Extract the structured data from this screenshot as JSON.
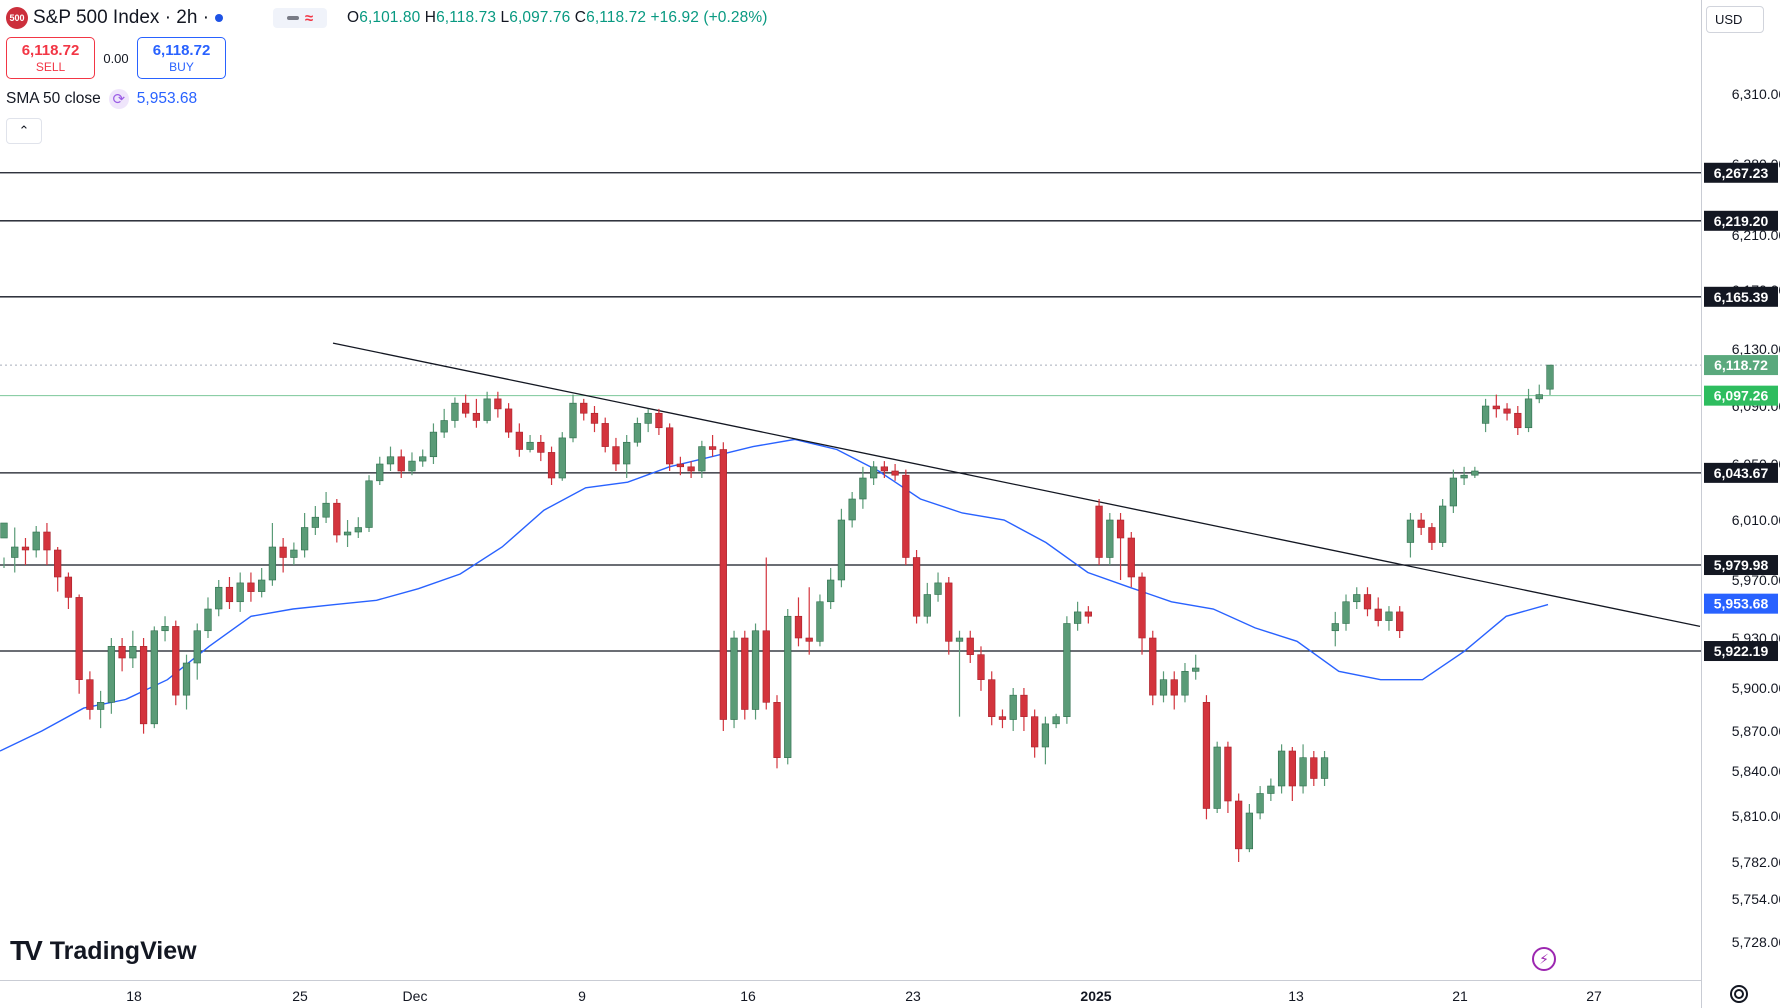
{
  "legend": {
    "symbol_badge": "500",
    "title": "S&P 500 Index · 2h ·",
    "ohlc": [
      {
        "k": "O",
        "v": "6,101.80"
      },
      {
        "k": "H",
        "v": "6,118.73"
      },
      {
        "k": "L",
        "v": "6,097.76"
      },
      {
        "k": "C",
        "v": "6,118.72"
      }
    ],
    "change": "+16.92 (+0.28%)"
  },
  "trade": {
    "sell_price": "6,118.72",
    "sell_label": "SELL",
    "spread": "0.00",
    "buy_price": "6,118.72",
    "buy_label": "BUY"
  },
  "sma": {
    "label": "SMA 50 close",
    "value": "5,953.68"
  },
  "currency": "USD",
  "logo_text": "TradingView",
  "colors": {
    "up": "#5a9b77",
    "down": "#d3343d",
    "sma": "#2962ff",
    "current_price": "#4caf80"
  },
  "chart_data": {
    "type": "candlestick",
    "symbol": "S&P 500 Index",
    "interval": "2h",
    "y_ticks": [
      "6,310.00",
      "6,280.00",
      "6,210.00",
      "6,170.00",
      "6,130.00",
      "6,090.00",
      "6,050.00",
      "6,010.00",
      "5,970.00",
      "5,930.00",
      "5,900.00",
      "5,870.00",
      "5,840.00",
      "5,810.00",
      "5,782.00",
      "5,754.00",
      "5,728.00"
    ],
    "x_ticks": [
      "18",
      "25",
      "Dec",
      "9",
      "16",
      "23",
      "2025",
      "13",
      "21",
      "27"
    ],
    "horizontal_levels": [
      {
        "value": 6267.23,
        "label": "6,267.23",
        "style": "black"
      },
      {
        "value": 6219.2,
        "label": "6,219.20",
        "style": "black"
      },
      {
        "value": 6165.39,
        "label": "6,165.39",
        "style": "black"
      },
      {
        "value": 6043.67,
        "label": "6,043.67",
        "style": "black"
      },
      {
        "value": 5979.98,
        "label": "5,979.98",
        "style": "black"
      },
      {
        "value": 5922.19,
        "label": "5,922.19",
        "style": "black"
      }
    ],
    "current_price": {
      "value": 6118.72,
      "label": "6,118.72"
    },
    "green_level": {
      "value": 6097.26,
      "label": "6,097.26"
    },
    "sma_label": {
      "value": 5953.68,
      "label": "5,953.68"
    },
    "trendline": [
      {
        "x": 0.0,
        "y": 6134
      },
      {
        "x": 1.0,
        "y": 5938
      }
    ],
    "sma50": [
      5855,
      5870,
      5886,
      5892,
      5905,
      5925,
      5945,
      5950,
      5953,
      5956,
      5964,
      5974,
      5992,
      6017,
      6033,
      6037,
      6048,
      6055,
      6062,
      6067,
      6060,
      6045,
      6025,
      6015,
      6010,
      5995,
      5975,
      5965,
      5955,
      5950,
      5937,
      5928,
      5910,
      5905,
      5905,
      5922,
      5945,
      5953
    ],
    "candles": [
      [
        5998,
        6008,
        5985,
        5978
      ],
      [
        5985,
        5992,
        6005,
        5975
      ],
      [
        5992,
        5990,
        5998,
        5980
      ],
      [
        5990,
        6002,
        6006,
        5985
      ],
      [
        6002,
        5990,
        6008,
        5980
      ],
      [
        5990,
        5972,
        5992,
        5962
      ],
      [
        5972,
        5958,
        5975,
        5950
      ],
      [
        5958,
        5905,
        5960,
        5896
      ],
      [
        5905,
        5885,
        5910,
        5878
      ],
      [
        5885,
        5890,
        5898,
        5872
      ],
      [
        5890,
        5925,
        5930,
        5882
      ],
      [
        5925,
        5918,
        5930,
        5910
      ],
      [
        5918,
        5925,
        5935,
        5912
      ],
      [
        5925,
        5875,
        5930,
        5868
      ],
      [
        5875,
        5935,
        5938,
        5872
      ],
      [
        5935,
        5938,
        5945,
        5928
      ],
      [
        5938,
        5895,
        5942,
        5888
      ],
      [
        5895,
        5915,
        5920,
        5885
      ],
      [
        5915,
        5935,
        5940,
        5905
      ],
      [
        5935,
        5950,
        5958,
        5930
      ],
      [
        5950,
        5965,
        5970,
        5945
      ],
      [
        5965,
        5955,
        5972,
        5950
      ],
      [
        5955,
        5968,
        5975,
        5948
      ],
      [
        5968,
        5962,
        5975,
        5955
      ],
      [
        5962,
        5970,
        5978,
        5958
      ],
      [
        5970,
        5992,
        6008,
        5966
      ],
      [
        5992,
        5985,
        5998,
        5975
      ],
      [
        5985,
        5990,
        5995,
        5980
      ],
      [
        5990,
        6005,
        6015,
        5985
      ],
      [
        6005,
        6012,
        6020,
        6000
      ],
      [
        6012,
        6022,
        6030,
        6008
      ],
      [
        6022,
        6000,
        6025,
        5995
      ],
      [
        6000,
        6002,
        6010,
        5992
      ],
      [
        6002,
        6005,
        6012,
        5998
      ],
      [
        6005,
        6038,
        6042,
        6002
      ],
      [
        6038,
        6050,
        6055,
        6035
      ],
      [
        6050,
        6055,
        6062,
        6045
      ],
      [
        6055,
        6045,
        6060,
        6040
      ],
      [
        6045,
        6052,
        6058,
        6042
      ],
      [
        6052,
        6055,
        6060,
        6048
      ],
      [
        6055,
        6072,
        6078,
        6050
      ],
      [
        6072,
        6080,
        6088,
        6068
      ],
      [
        6080,
        6092,
        6096,
        6075
      ],
      [
        6092,
        6085,
        6098,
        6082
      ],
      [
        6085,
        6080,
        6095,
        6075
      ],
      [
        6080,
        6095,
        6100,
        6078
      ],
      [
        6095,
        6088,
        6100,
        6082
      ],
      [
        6088,
        6072,
        6092,
        6068
      ],
      [
        6072,
        6060,
        6078,
        6055
      ],
      [
        6060,
        6065,
        6070,
        6058
      ],
      [
        6065,
        6058,
        6070,
        6052
      ],
      [
        6058,
        6040,
        6062,
        6035
      ],
      [
        6040,
        6068,
        6072,
        6038
      ],
      [
        6068,
        6092,
        6098,
        6065
      ],
      [
        6092,
        6085,
        6095,
        6080
      ],
      [
        6085,
        6078,
        6090,
        6072
      ],
      [
        6078,
        6062,
        6082,
        6058
      ],
      [
        6062,
        6050,
        6068,
        6045
      ],
      [
        6050,
        6065,
        6070,
        6040
      ],
      [
        6065,
        6078,
        6082,
        6062
      ],
      [
        6078,
        6085,
        6088,
        6072
      ],
      [
        6085,
        6075,
        6088,
        6070
      ],
      [
        6075,
        6050,
        6078,
        6045
      ],
      [
        6050,
        6048,
        6055,
        6042
      ],
      [
        6048,
        6045,
        6052,
        6040
      ],
      [
        6045,
        6062,
        6066,
        6040
      ],
      [
        6062,
        6060,
        6070,
        6055
      ],
      [
        6060,
        5878,
        6065,
        5870
      ],
      [
        5878,
        5930,
        5935,
        5872
      ],
      [
        5930,
        5885,
        5935,
        5878
      ],
      [
        5885,
        5935,
        5940,
        5878
      ],
      [
        5935,
        5890,
        5985,
        5885
      ],
      [
        5890,
        5850,
        5895,
        5842
      ],
      [
        5850,
        5945,
        5950,
        5845
      ],
      [
        5945,
        5930,
        5958,
        5925
      ],
      [
        5930,
        5928,
        5965,
        5920
      ],
      [
        5928,
        5955,
        5960,
        5925
      ],
      [
        5955,
        5970,
        5978,
        5950
      ],
      [
        5970,
        6010,
        6018,
        5965
      ],
      [
        6010,
        6025,
        6030,
        6005
      ],
      [
        6025,
        6040,
        6048,
        6018
      ],
      [
        6040,
        6048,
        6052,
        6035
      ],
      [
        6048,
        6045,
        6052,
        6040
      ],
      [
        6045,
        6042,
        6050,
        6038
      ],
      [
        6042,
        5985,
        6046,
        5980
      ],
      [
        5985,
        5945,
        5990,
        5940
      ],
      [
        5945,
        5960,
        5968,
        5940
      ],
      [
        5960,
        5968,
        5975,
        5955
      ],
      [
        5968,
        5928,
        5972,
        5920
      ],
      [
        5928,
        5930,
        5935,
        5880
      ],
      [
        5930,
        5920,
        5935,
        5915
      ],
      [
        5920,
        5905,
        5925,
        5898
      ],
      [
        5905,
        5880,
        5910,
        5874
      ],
      [
        5880,
        5878,
        5885,
        5872
      ],
      [
        5878,
        5895,
        5900,
        5870
      ],
      [
        5895,
        5880,
        5900,
        5870
      ],
      [
        5880,
        5858,
        5885,
        5850
      ],
      [
        5858,
        5875,
        5880,
        5845
      ],
      [
        5875,
        5880,
        5882,
        5872
      ],
      [
        5880,
        5940,
        5945,
        5875
      ],
      [
        5940,
        5948,
        5955,
        5935
      ],
      [
        5948,
        5945,
        5952,
        5940
      ],
      [
        6020,
        5985,
        6025,
        5980
      ],
      [
        5985,
        6010,
        6015,
        5980
      ],
      [
        6010,
        5998,
        6015,
        5970
      ],
      [
        5998,
        5972,
        6002,
        5965
      ],
      [
        5972,
        5930,
        5975,
        5920
      ],
      [
        5930,
        5895,
        5935,
        5888
      ],
      [
        5895,
        5905,
        5910,
        5890
      ],
      [
        5905,
        5895,
        5910,
        5885
      ],
      [
        5895,
        5910,
        5915,
        5890
      ],
      [
        5910,
        5912,
        5920,
        5905
      ],
      [
        5890,
        5815,
        5895,
        5808
      ],
      [
        5815,
        5858,
        5862,
        5812
      ],
      [
        5858,
        5820,
        5862,
        5812
      ],
      [
        5820,
        5790,
        5825,
        5782
      ],
      [
        5790,
        5812,
        5818,
        5788
      ],
      [
        5812,
        5825,
        5830,
        5808
      ],
      [
        5825,
        5830,
        5835,
        5820
      ],
      [
        5830,
        5855,
        5860,
        5825
      ],
      [
        5855,
        5830,
        5858,
        5820
      ],
      [
        5830,
        5850,
        5860,
        5825
      ],
      [
        5850,
        5835,
        5855,
        5830
      ],
      [
        5835,
        5850,
        5855,
        5830
      ],
      [
        5935,
        5940,
        5948,
        5925
      ],
      [
        5940,
        5955,
        5960,
        5935
      ],
      [
        5955,
        5960,
        5965,
        5950
      ],
      [
        5960,
        5950,
        5965,
        5945
      ],
      [
        5950,
        5942,
        5958,
        5938
      ],
      [
        5942,
        5948,
        5952,
        5935
      ],
      [
        5948,
        5935,
        5952,
        5930
      ],
      [
        5995,
        6010,
        6015,
        5985
      ],
      [
        6010,
        6005,
        6015,
        6000
      ],
      [
        6005,
        5995,
        6008,
        5990
      ],
      [
        5995,
        6020,
        6025,
        5992
      ],
      [
        6020,
        6040,
        6046,
        6015
      ],
      [
        6040,
        6042,
        6048,
        6035
      ],
      [
        6042,
        6045,
        6048,
        6040
      ],
      [
        6078,
        6090,
        6095,
        6072
      ],
      [
        6090,
        6088,
        6098,
        6082
      ],
      [
        6088,
        6085,
        6092,
        6080
      ],
      [
        6085,
        6075,
        6090,
        6070
      ],
      [
        6075,
        6095,
        6102,
        6072
      ],
      [
        6095,
        6098,
        6105,
        6092
      ],
      [
        6101.8,
        6118.72,
        6118.73,
        6097.76
      ]
    ]
  }
}
